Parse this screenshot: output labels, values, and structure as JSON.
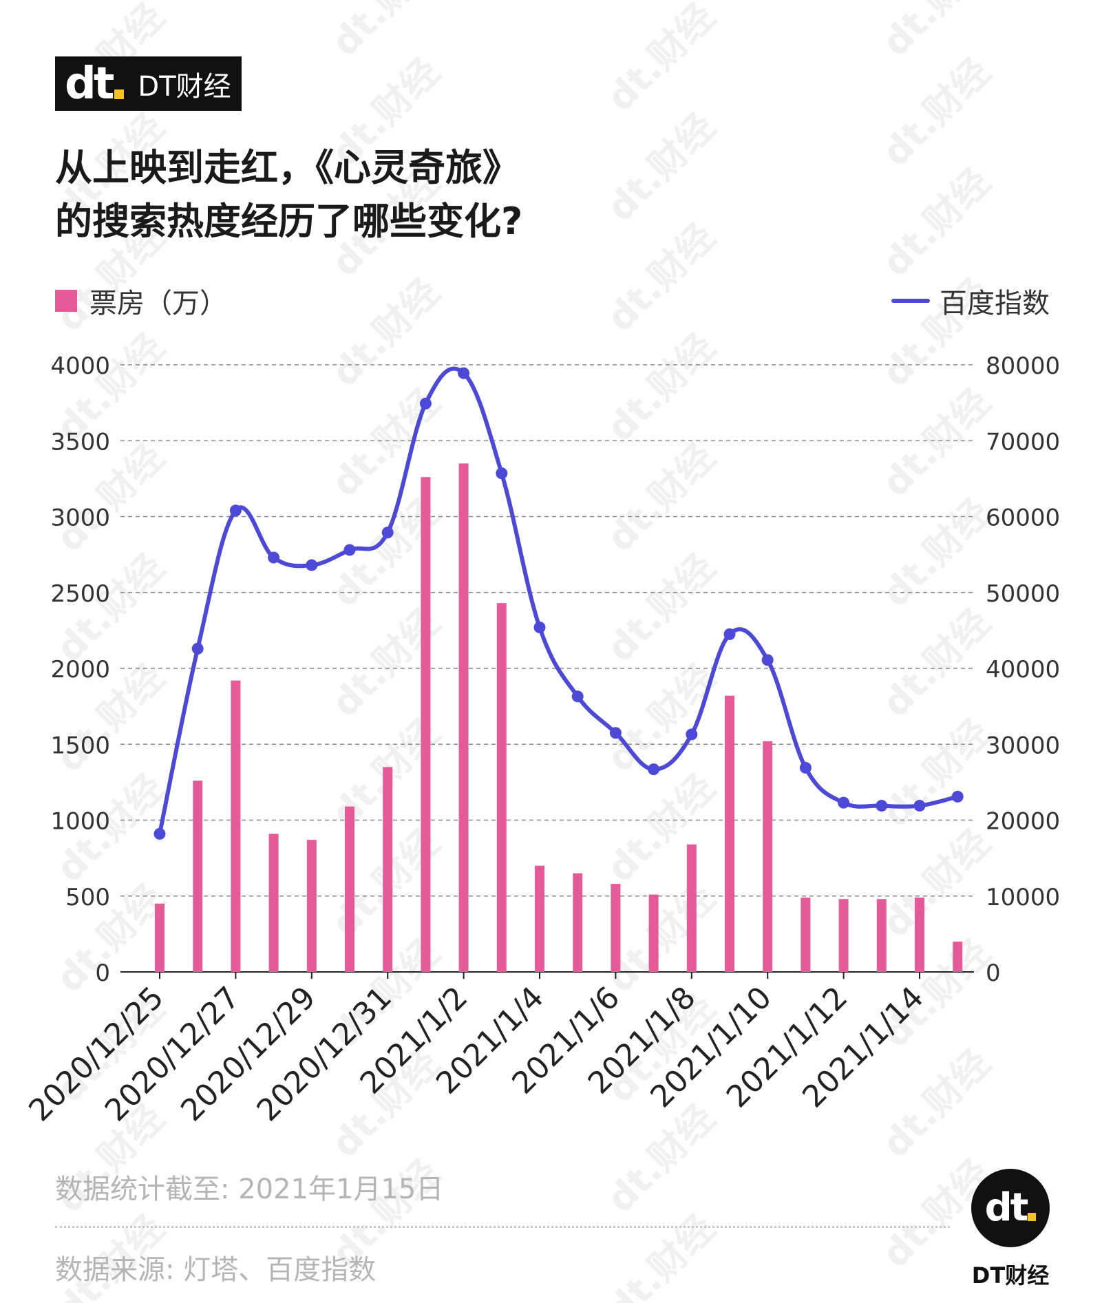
{
  "brand": {
    "mark": "dt",
    "name": "DT财经"
  },
  "title": {
    "line1": "从上映到走红，《心灵奇旅》",
    "line2": "的搜索热度经历了哪些变化?"
  },
  "legend": {
    "bar_label": "票房（万）",
    "line_label": "百度指数"
  },
  "colors": {
    "bar": "#e55b98",
    "line": "#4b49d6",
    "grid": "#888888"
  },
  "chart_data": {
    "type": "bar",
    "dates": [
      "2020/12/25",
      "2020/12/26",
      "2020/12/27",
      "2020/12/28",
      "2020/12/29",
      "2020/12/30",
      "2020/12/31",
      "2021/1/1",
      "2021/1/2",
      "2021/1/3",
      "2021/1/4",
      "2021/1/5",
      "2021/1/6",
      "2021/1/7",
      "2021/1/8",
      "2021/1/9",
      "2021/1/10",
      "2021/1/11",
      "2021/1/12",
      "2021/1/13",
      "2021/1/14",
      "2021/1/15"
    ],
    "x_tick_labels": [
      "2020/12/25",
      "2020/12/27",
      "2020/12/29",
      "2020/12/31",
      "2021/1/2",
      "2021/1/4",
      "2021/1/6",
      "2021/1/8",
      "2021/1/10",
      "2021/1/12",
      "2021/1/14"
    ],
    "series": [
      {
        "name": "票房（万）",
        "type": "bar",
        "axis": "left",
        "values": [
          450,
          1260,
          1920,
          910,
          870,
          1090,
          1350,
          3260,
          3350,
          2430,
          700,
          650,
          580,
          510,
          840,
          1820,
          1520,
          490,
          480,
          480,
          490,
          200
        ]
      },
      {
        "name": "百度指数",
        "type": "line",
        "axis": "right",
        "values": [
          18200,
          42600,
          60800,
          54600,
          53600,
          55600,
          57900,
          74900,
          78900,
          65700,
          45400,
          36300,
          31500,
          26700,
          31300,
          44500,
          41100,
          26900,
          22300,
          21900,
          21900,
          23100
        ]
      }
    ],
    "left_axis": {
      "ylim": [
        0,
        4000
      ],
      "ticks": [
        "0",
        "500",
        "1000",
        "1500",
        "2000",
        "2500",
        "3000",
        "3500",
        "4000"
      ]
    },
    "right_axis": {
      "ylim": [
        0,
        80000
      ],
      "ticks": [
        "0",
        "10000",
        "20000",
        "30000",
        "40000",
        "50000",
        "60000",
        "70000",
        "80000"
      ]
    },
    "grid": true,
    "legend_placement": "top"
  },
  "footer": {
    "note": "数据统计截至: 2021年1月15日",
    "source": "数据来源: 灯塔、百度指数",
    "logo_text": "DT财经"
  },
  "watermark_text": "dt.财经"
}
